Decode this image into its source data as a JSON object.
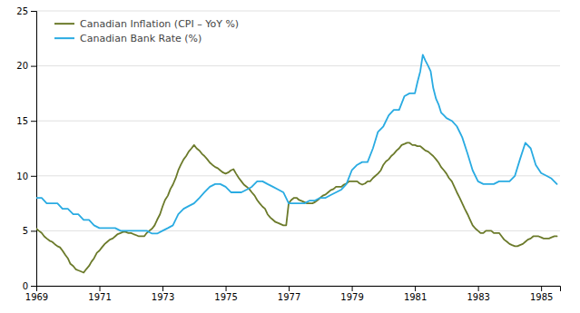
{
  "chart_data": {
    "type": "line",
    "xlim": [
      1969.0,
      1985.6
    ],
    "ylim": [
      0,
      25
    ],
    "xticks": [
      1969,
      1971,
      1973,
      1975,
      1977,
      1979,
      1981,
      1983,
      1985
    ],
    "yticks": [
      0,
      5,
      10,
      15,
      20,
      25
    ],
    "grid": true,
    "legend": "top-left",
    "series": [
      {
        "name": "Canadian Inflation (CPI – YoY %)",
        "color": "#6b7a2a",
        "x": [
          1969.0,
          1969.08,
          1969.17,
          1969.25,
          1969.33,
          1969.42,
          1969.5,
          1969.58,
          1969.67,
          1969.75,
          1969.83,
          1969.92,
          1970.0,
          1970.08,
          1970.17,
          1970.25,
          1970.33,
          1970.42,
          1970.5,
          1970.58,
          1970.67,
          1970.75,
          1970.83,
          1970.92,
          1971.0,
          1971.08,
          1971.17,
          1971.25,
          1971.33,
          1971.42,
          1971.5,
          1971.58,
          1971.67,
          1971.75,
          1971.83,
          1971.92,
          1972.0,
          1972.08,
          1972.17,
          1972.25,
          1972.33,
          1972.42,
          1972.5,
          1972.58,
          1972.67,
          1972.75,
          1972.83,
          1972.92,
          1973.0,
          1973.08,
          1973.17,
          1973.25,
          1973.33,
          1973.42,
          1973.5,
          1973.58,
          1973.67,
          1973.75,
          1973.83,
          1973.92,
          1974.0,
          1974.08,
          1974.17,
          1974.25,
          1974.33,
          1974.42,
          1974.5,
          1974.58,
          1974.67,
          1974.75,
          1974.83,
          1974.92,
          1975.0,
          1975.08,
          1975.17,
          1975.25,
          1975.33,
          1975.42,
          1975.5,
          1975.58,
          1975.67,
          1975.75,
          1975.83,
          1975.92,
          1976.0,
          1976.08,
          1976.17,
          1976.25,
          1976.33,
          1976.42,
          1976.5,
          1976.58,
          1976.67,
          1976.75,
          1976.83,
          1976.92,
          1977.0,
          1977.08,
          1977.17,
          1977.25,
          1977.33,
          1977.42,
          1977.5,
          1977.58,
          1977.67,
          1977.75,
          1977.83,
          1977.92,
          1978.0,
          1978.08,
          1978.17,
          1978.25,
          1978.33,
          1978.42,
          1978.5,
          1978.58,
          1978.67,
          1978.75,
          1978.83,
          1978.92,
          1979.0,
          1979.08,
          1979.17,
          1979.25,
          1979.33,
          1979.42,
          1979.5,
          1979.58,
          1979.67,
          1979.75,
          1979.83,
          1979.92,
          1980.0,
          1980.08,
          1980.17,
          1980.25,
          1980.33,
          1980.42,
          1980.5,
          1980.58,
          1980.67,
          1980.75,
          1980.83,
          1980.92,
          1981.0,
          1981.08,
          1981.17,
          1981.25,
          1981.33,
          1981.42,
          1981.5,
          1981.58,
          1981.67,
          1981.75,
          1981.83,
          1981.92,
          1982.0,
          1982.08,
          1982.17,
          1982.25,
          1982.33,
          1982.42,
          1982.5,
          1982.58,
          1982.67,
          1982.75,
          1982.83,
          1982.92,
          1983.0,
          1983.08,
          1983.17,
          1983.25,
          1983.33,
          1983.42,
          1983.5,
          1983.58,
          1983.67,
          1983.75,
          1983.83,
          1983.92,
          1984.0,
          1984.08,
          1984.17,
          1984.25,
          1984.33,
          1984.42,
          1984.5,
          1984.58,
          1984.67,
          1984.75,
          1984.83,
          1984.92,
          1985.0,
          1985.08,
          1985.17,
          1985.25,
          1985.33,
          1985.42,
          1985.5
        ],
        "values": [
          5.2,
          5.0,
          4.8,
          4.5,
          4.3,
          4.1,
          4.0,
          3.8,
          3.6,
          3.5,
          3.2,
          2.8,
          2.5,
          2.0,
          1.8,
          1.5,
          1.4,
          1.3,
          1.2,
          1.5,
          1.8,
          2.2,
          2.5,
          3.0,
          3.2,
          3.5,
          3.8,
          4.0,
          4.2,
          4.3,
          4.5,
          4.7,
          4.8,
          4.9,
          4.9,
          4.8,
          4.8,
          4.7,
          4.6,
          4.5,
          4.5,
          4.5,
          4.8,
          5.0,
          5.2,
          5.5,
          6.0,
          6.5,
          7.2,
          7.8,
          8.2,
          8.8,
          9.2,
          9.8,
          10.5,
          11.0,
          11.5,
          11.8,
          12.2,
          12.5,
          12.8,
          12.5,
          12.3,
          12.0,
          11.8,
          11.5,
          11.2,
          11.0,
          10.8,
          10.7,
          10.5,
          10.3,
          10.2,
          10.3,
          10.5,
          10.6,
          10.2,
          9.8,
          9.5,
          9.2,
          9.0,
          8.8,
          8.5,
          8.2,
          7.8,
          7.5,
          7.2,
          7.0,
          6.5,
          6.2,
          6.0,
          5.8,
          5.7,
          5.6,
          5.5,
          5.5,
          7.5,
          7.8,
          8.0,
          8.0,
          7.8,
          7.7,
          7.6,
          7.5,
          7.5,
          7.5,
          7.6,
          7.8,
          8.0,
          8.2,
          8.3,
          8.5,
          8.7,
          8.8,
          9.0,
          9.0,
          9.0,
          9.2,
          9.3,
          9.5,
          9.5,
          9.5,
          9.5,
          9.3,
          9.2,
          9.3,
          9.5,
          9.5,
          9.8,
          10.0,
          10.2,
          10.5,
          11.0,
          11.3,
          11.5,
          11.8,
          12.0,
          12.3,
          12.5,
          12.8,
          12.9,
          13.0,
          13.0,
          12.8,
          12.8,
          12.7,
          12.7,
          12.5,
          12.3,
          12.2,
          12.0,
          11.8,
          11.5,
          11.2,
          10.8,
          10.5,
          10.2,
          9.8,
          9.5,
          9.0,
          8.5,
          8.0,
          7.5,
          7.0,
          6.5,
          6.0,
          5.5,
          5.2,
          5.0,
          4.8,
          4.8,
          5.0,
          5.0,
          5.0,
          4.8,
          4.8,
          4.8,
          4.5,
          4.2,
          4.0,
          3.8,
          3.7,
          3.6,
          3.6,
          3.7,
          3.8,
          4.0,
          4.2,
          4.3,
          4.5,
          4.5,
          4.5,
          4.4,
          4.3,
          4.3,
          4.3,
          4.4,
          4.5,
          4.5
        ]
      },
      {
        "name": "Canadian Bank Rate (%)",
        "color": "#29abe2",
        "x": [
          1969.0,
          1969.17,
          1969.33,
          1969.5,
          1969.67,
          1969.83,
          1970.0,
          1970.17,
          1970.33,
          1970.5,
          1970.67,
          1970.83,
          1971.0,
          1971.17,
          1971.33,
          1971.5,
          1971.67,
          1971.83,
          1972.0,
          1972.17,
          1972.33,
          1972.5,
          1972.67,
          1972.83,
          1973.0,
          1973.17,
          1973.33,
          1973.5,
          1973.67,
          1973.83,
          1974.0,
          1974.17,
          1974.33,
          1974.5,
          1974.67,
          1974.83,
          1975.0,
          1975.17,
          1975.33,
          1975.5,
          1975.67,
          1975.83,
          1976.0,
          1976.17,
          1976.33,
          1976.5,
          1976.67,
          1976.83,
          1977.0,
          1977.17,
          1977.33,
          1977.5,
          1977.67,
          1977.83,
          1978.0,
          1978.17,
          1978.33,
          1978.5,
          1978.67,
          1978.83,
          1979.0,
          1979.17,
          1979.33,
          1979.5,
          1979.67,
          1979.83,
          1980.0,
          1980.17,
          1980.33,
          1980.5,
          1980.67,
          1980.83,
          1981.0,
          1981.08,
          1981.17,
          1981.25,
          1981.33,
          1981.42,
          1981.5,
          1981.58,
          1981.67,
          1981.75,
          1981.83,
          1981.92,
          1982.0,
          1982.17,
          1982.33,
          1982.5,
          1982.67,
          1982.83,
          1983.0,
          1983.17,
          1983.33,
          1983.5,
          1983.67,
          1983.83,
          1984.0,
          1984.17,
          1984.33,
          1984.5,
          1984.67,
          1984.83,
          1985.0,
          1985.17,
          1985.33,
          1985.5
        ],
        "values": [
          8.0,
          8.0,
          7.5,
          7.5,
          7.5,
          7.0,
          7.0,
          6.5,
          6.5,
          6.0,
          6.0,
          5.5,
          5.25,
          5.25,
          5.25,
          5.25,
          5.0,
          5.0,
          5.0,
          5.0,
          5.0,
          5.0,
          4.75,
          4.75,
          5.0,
          5.25,
          5.5,
          6.5,
          7.0,
          7.25,
          7.5,
          8.0,
          8.5,
          9.0,
          9.25,
          9.25,
          9.0,
          8.5,
          8.5,
          8.5,
          8.75,
          9.0,
          9.5,
          9.5,
          9.25,
          9.0,
          8.75,
          8.5,
          7.5,
          7.5,
          7.5,
          7.5,
          7.75,
          7.75,
          8.0,
          8.0,
          8.25,
          8.5,
          8.75,
          9.25,
          10.5,
          11.0,
          11.25,
          11.25,
          12.5,
          14.0,
          14.5,
          15.5,
          16.0,
          16.0,
          17.25,
          17.5,
          17.5,
          18.5,
          19.5,
          21.0,
          20.5,
          20.0,
          19.5,
          18.0,
          17.0,
          16.5,
          15.75,
          15.5,
          15.25,
          15.0,
          14.5,
          13.5,
          12.0,
          10.5,
          9.5,
          9.25,
          9.25,
          9.25,
          9.5,
          9.5,
          9.5,
          10.0,
          11.5,
          13.0,
          12.5,
          11.0,
          10.25,
          10.0,
          9.75,
          9.25
        ]
      }
    ]
  }
}
